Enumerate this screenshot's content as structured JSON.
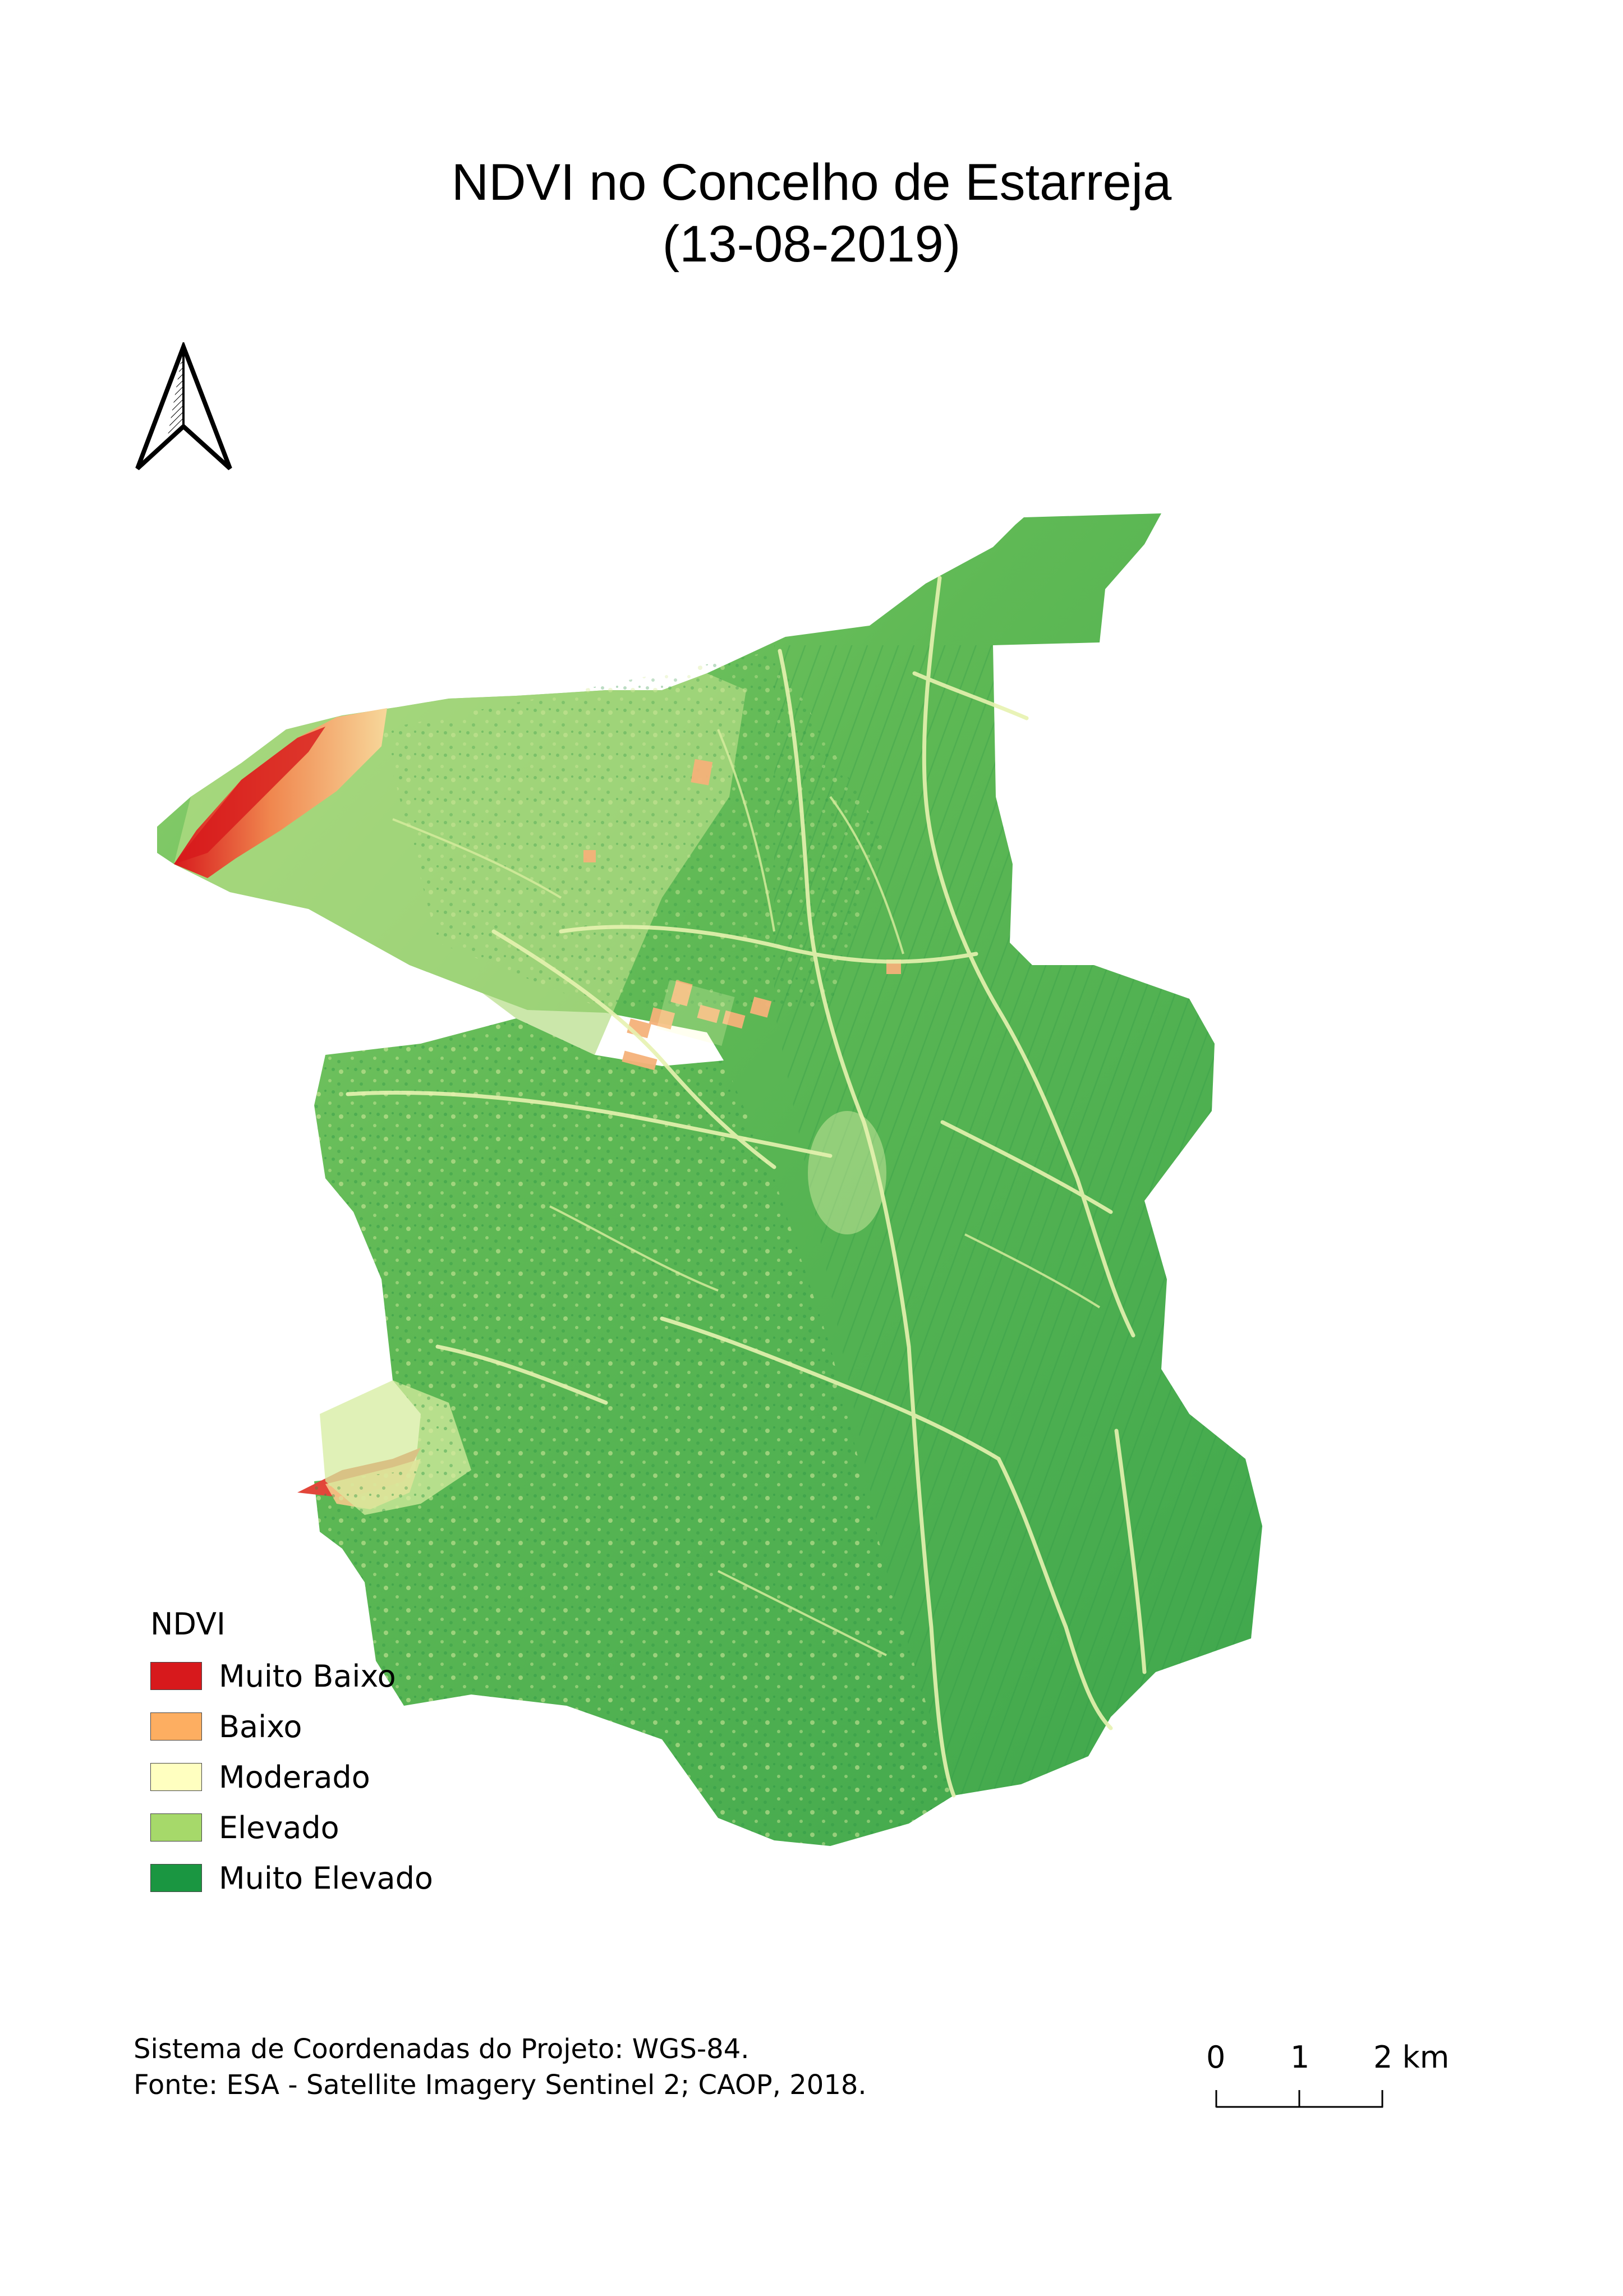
{
  "title": {
    "line1": "NDVI no Concelho de Estarreja",
    "line2": "(13-08-2019)"
  },
  "north_arrow": {
    "icon": "north-arrow-icon"
  },
  "legend": {
    "title": "NDVI",
    "items": [
      {
        "label": "Muito Baixo",
        "color": "#d7191c"
      },
      {
        "label": "Baixo",
        "color": "#fdae61"
      },
      {
        "label": "Moderado",
        "color": "#ffffc0"
      },
      {
        "label": "Elevado",
        "color": "#a6d96a"
      },
      {
        "label": "Muito Elevado",
        "color": "#1a9641"
      }
    ]
  },
  "footer": {
    "line1": "Sistema de Coordenadas do Projeto: WGS-84.",
    "line2": "Fonte: ESA - Satellite Imagery Sentinel 2; CAOP, 2018."
  },
  "scale_bar": {
    "labels": [
      "0",
      "1",
      "2 km"
    ]
  },
  "colors": {
    "map_fill_dark": "#2e9e49",
    "map_fill_mid": "#6cc05a",
    "map_fill_light": "#b5dd86",
    "coast_red": "#d7191c",
    "coast_orange": "#f09a5a"
  }
}
